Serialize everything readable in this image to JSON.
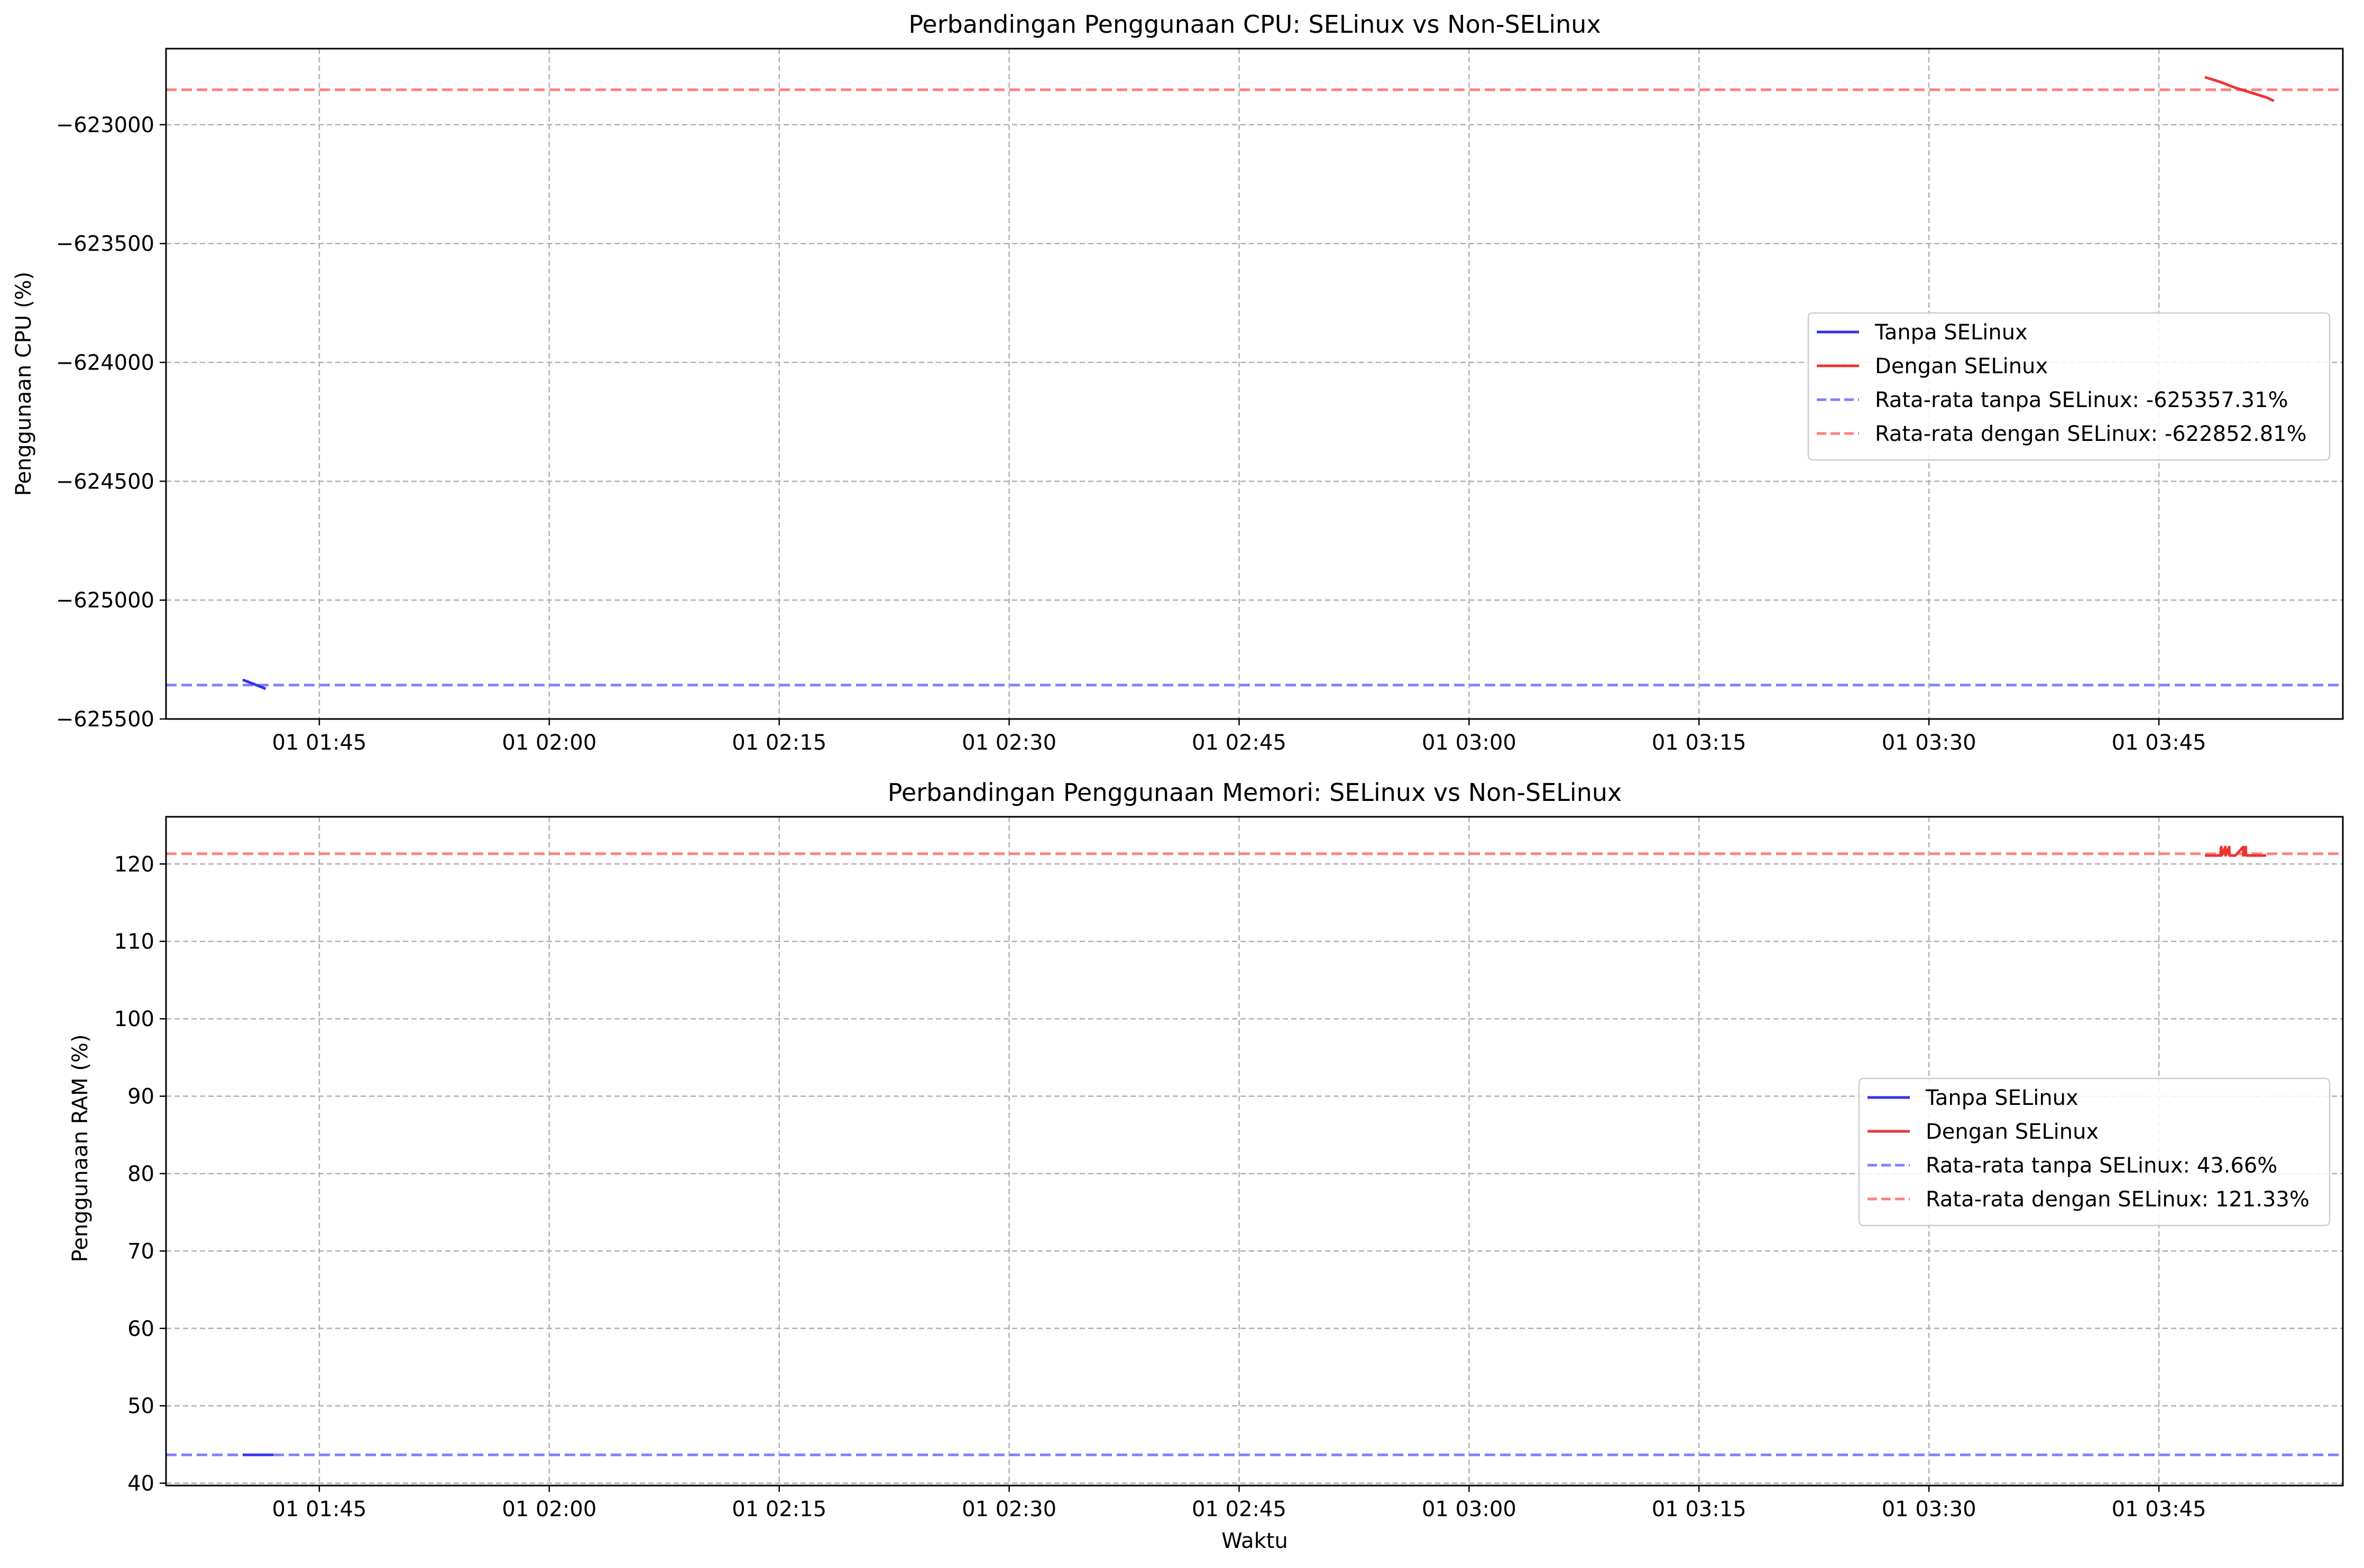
{
  "colors": {
    "no_selinux": "#3333ee",
    "with_selinux": "#ee3333",
    "avg_no_selinux": "#8080ff",
    "avg_with_selinux": "#ff8080",
    "grid": "#b0b0b0"
  },
  "chart_data": [
    {
      "type": "line",
      "title": "Perbandingan Penggunaan CPU: SELinux vs Non-SELinux",
      "xlabel": "",
      "ylabel": "Penggunaan CPU (%)",
      "x_time_range": [
        "01:35",
        "03:57"
      ],
      "ylim": [
        -625500,
        -622680
      ],
      "xticks": [
        "01 01:45",
        "01 02:00",
        "01 02:15",
        "01 02:30",
        "01 02:45",
        "01 03:00",
        "01 03:15",
        "01 03:30",
        "01 03:45"
      ],
      "yticks": [
        -623000,
        -623500,
        -624000,
        -624500,
        -625000,
        -625500
      ],
      "ytick_labels": [
        "−623000",
        "−623500",
        "−624000",
        "−624500",
        "−625000",
        "−625500"
      ],
      "grid": true,
      "legend_position": "center-right",
      "series": [
        {
          "name": "Tanpa SELinux",
          "style": "solid",
          "color_key": "no_selinux",
          "x": [
            "01:40:00",
            "01:41:00",
            "01:41:30"
          ],
          "y": [
            -625335,
            -625360,
            -625373
          ]
        },
        {
          "name": "Dengan SELinux",
          "style": "solid",
          "color_key": "with_selinux",
          "x": [
            "03:48:00",
            "03:49:00",
            "03:50:00",
            "03:51:00",
            "03:52:00",
            "03:52:30"
          ],
          "y": [
            -622800,
            -622820,
            -622845,
            -622865,
            -622885,
            -622900
          ]
        }
      ],
      "reference_lines": [
        {
          "name": "Rata-rata tanpa SELinux: -625357.31%",
          "y": -625357.31,
          "style": "dashed",
          "color_key": "avg_no_selinux"
        },
        {
          "name": "Rata-rata dengan SELinux: -622852.81%",
          "y": -622852.81,
          "style": "dashed",
          "color_key": "avg_with_selinux"
        }
      ]
    },
    {
      "type": "line",
      "title": "Perbandingan Penggunaan Memori: SELinux vs Non-SELinux",
      "xlabel": "Waktu",
      "ylabel": "Penggunaan RAM (%)",
      "x_time_range": [
        "01:35",
        "03:57"
      ],
      "ylim": [
        39.7,
        126.1
      ],
      "xticks": [
        "01 01:45",
        "01 02:00",
        "01 02:15",
        "01 02:30",
        "01 02:45",
        "01 03:00",
        "01 03:15",
        "01 03:30",
        "01 03:45"
      ],
      "yticks": [
        40,
        50,
        60,
        70,
        80,
        90,
        100,
        110,
        120
      ],
      "ytick_labels": [
        "40",
        "50",
        "60",
        "70",
        "80",
        "90",
        "100",
        "110",
        "120"
      ],
      "grid": true,
      "legend_position": "center-right",
      "series": [
        {
          "name": "Tanpa SELinux",
          "style": "solid",
          "color_key": "no_selinux",
          "x": [
            "01:40:00",
            "01:41:00",
            "01:42:00"
          ],
          "y": [
            43.66,
            43.66,
            43.66
          ]
        },
        {
          "name": "Dengan SELinux",
          "style": "solid",
          "color_key": "with_selinux",
          "x": [
            "03:48:00",
            "03:49:00",
            "03:49:04",
            "03:49:05",
            "03:49:20",
            "03:49:21",
            "03:49:35",
            "03:49:36",
            "03:50:00",
            "03:50:30",
            "03:50:31",
            "03:50:40",
            "03:50:41",
            "03:51:00",
            "03:52:00"
          ],
          "y": [
            121.1,
            121.1,
            122.2,
            121.1,
            122.2,
            121.1,
            122.2,
            121.1,
            121.1,
            122.2,
            121.1,
            122.2,
            121.1,
            121.1,
            121.1
          ]
        }
      ],
      "reference_lines": [
        {
          "name": "Rata-rata tanpa SELinux: 43.66%",
          "y": 43.66,
          "style": "dashed",
          "color_key": "avg_no_selinux"
        },
        {
          "name": "Rata-rata dengan SELinux: 121.33%",
          "y": 121.33,
          "style": "dashed",
          "color_key": "avg_with_selinux"
        }
      ]
    }
  ]
}
